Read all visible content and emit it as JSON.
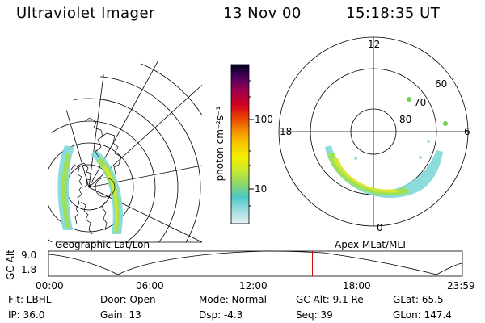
{
  "header": {
    "instrument": "Ultraviolet Imager",
    "date": "13 Nov 00",
    "time": "15:18:35 UT"
  },
  "colorbar": {
    "unit_label": "photon cm⁻²s⁻¹",
    "ticks": [
      "100",
      "10"
    ],
    "stops": [
      "#e6f0f0",
      "#9fdde0",
      "#4cc8c8",
      "#8ed86a",
      "#c8e830",
      "#f4f000",
      "#f8c800",
      "#f49000",
      "#e84000",
      "#d00020",
      "#a00050",
      "#500060",
      "#000020"
    ]
  },
  "maps": {
    "left_caption": "Geographic Lat/Lon",
    "right_caption": "Apex MLat/MLT",
    "polar_labels": {
      "mlt_top": "12",
      "mlt_left": "18",
      "mlt_right": "6",
      "mlt_bottom": "0",
      "lat_60": "60",
      "lat_70": "70",
      "lat_80": "80"
    }
  },
  "timeline": {
    "axis_label": "GC Alt",
    "y_top": "9.0",
    "y_bottom": "1.8",
    "ticks": [
      "00:00",
      "06:00",
      "12:00",
      "18:00",
      "23:59"
    ],
    "current_fraction": 0.6378
  },
  "status": {
    "flt": "Flt: LBHL",
    "ip": "IP: 36.0",
    "door": "Door: Open",
    "gain": "Gain: 13",
    "mode": "Mode: Normal",
    "dsp": "Dsp:   -4.3",
    "gc_alt": "GC Alt: 9.1 Re",
    "seq": "Seq: 39",
    "glat": "GLat:  65.5",
    "glon": "GLon: 147.4"
  },
  "colors": {
    "marker": "#cc0000",
    "aurora_outer": "#7fd8d8",
    "aurora_mid": "#9ee05a",
    "aurora_core": "#d8e830"
  }
}
